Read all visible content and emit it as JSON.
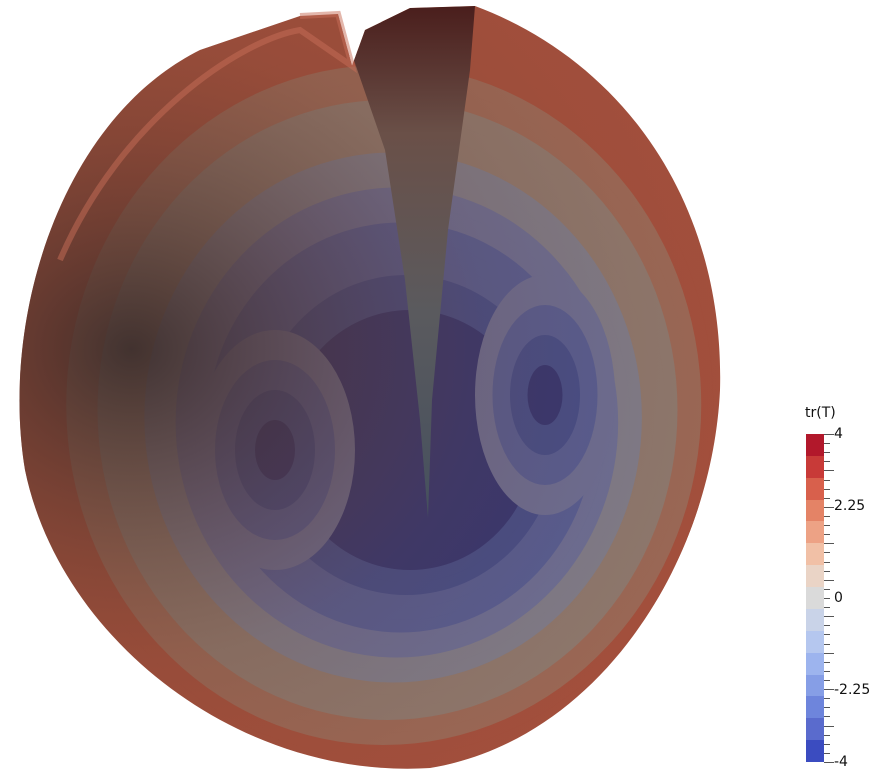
{
  "colorbar": {
    "title": "tr(T)",
    "labels": [
      "4",
      "2.25",
      "0",
      "-2.25",
      "-4"
    ],
    "label_values": [
      4,
      2.25,
      0,
      -2.25,
      -4
    ],
    "range": [
      -4,
      4
    ],
    "colors": [
      "#b2182b",
      "#c83a38",
      "#d8604c",
      "#e48366",
      "#eda285",
      "#f1c0a6",
      "#ead4c6",
      "#dadada",
      "#c9d3e8",
      "#b5c7ef",
      "#9db4ee",
      "#869ee6",
      "#6e85dc",
      "#5a6bcd",
      "#3b4cc0"
    ]
  },
  "render": {
    "field_name": "tr(T)",
    "shell_colors": [
      "#a34f3c",
      "#9a6a58",
      "#8c7c72",
      "#7b8192",
      "#6572a0",
      "#4d5f9f",
      "#394d94",
      "#26327a"
    ],
    "cut_face_color": "#4a4340"
  }
}
